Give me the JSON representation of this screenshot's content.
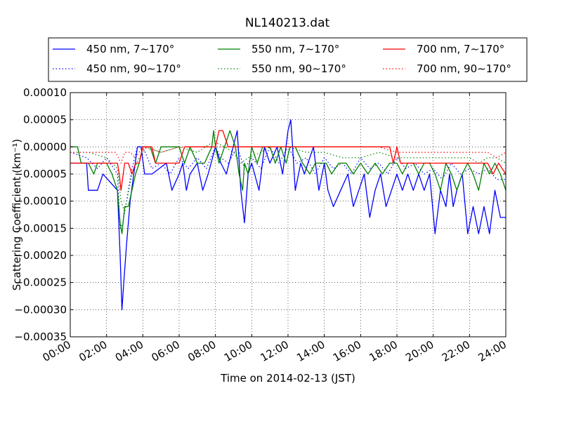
{
  "chart_data": {
    "type": "line",
    "title": "NL140213.dat",
    "xlabel": "Time on 2014-02-13 (JST)",
    "ylabel": "Scattering Coefficient (km⁻¹)",
    "xlim": [
      0,
      24
    ],
    "ylim": [
      -0.00035,
      0.0001
    ],
    "x_unit": "hours (JST)",
    "x_ticks": [
      0,
      2,
      4,
      6,
      8,
      10,
      12,
      14,
      16,
      18,
      20,
      22,
      24
    ],
    "x_tick_labels": [
      "00:00",
      "02:00",
      "04:00",
      "06:00",
      "08:00",
      "10:00",
      "12:00",
      "14:00",
      "16:00",
      "18:00",
      "20:00",
      "22:00",
      "24:00"
    ],
    "y_ticks": [
      -0.00035,
      -0.0003,
      -0.00025,
      -0.0002,
      -0.00015,
      -0.0001,
      -5e-05,
      0,
      5e-05,
      0.0001
    ],
    "y_tick_labels": [
      "−0.00035",
      "−0.00030",
      "−0.00025",
      "−0.00020",
      "−0.00015",
      "−0.00010",
      "−0.00005",
      "0.00000",
      "0.00005",
      "0.00010"
    ],
    "grid": true,
    "legend_placement": "top, above plot, 3 columns",
    "series": [
      {
        "name": "450 nm, 7∼170°",
        "color": "#0000ff",
        "style": "solid",
        "x": [
          0,
          0.9,
          1,
          1.5,
          1.8,
          2.6,
          2.75,
          2.85,
          2.95,
          3.1,
          3.3,
          3.5,
          3.7,
          3.9,
          4.1,
          4.5,
          5.3,
          5.6,
          6,
          6.2,
          6.4,
          6.6,
          7,
          7.3,
          7.6,
          8,
          8.3,
          8.6,
          9.2,
          9.4,
          9.6,
          9.8,
          10,
          10.4,
          10.7,
          11,
          11.4,
          11.7,
          12,
          12.15,
          12.25,
          12.4,
          12.7,
          12.9,
          13.1,
          13.4,
          13.7,
          14,
          14.2,
          14.5,
          14.9,
          15.3,
          15.6,
          15.9,
          16.2,
          16.5,
          16.8,
          17.1,
          17.4,
          17.7,
          18,
          18.3,
          18.6,
          18.9,
          19.2,
          19.5,
          19.8,
          20.1,
          20.4,
          20.7,
          20.9,
          21.1,
          21.3,
          21.6,
          21.9,
          22.2,
          22.5,
          22.8,
          23.1,
          23.4,
          23.7,
          24
        ],
        "y": [
          -3e-05,
          -3e-05,
          -8e-05,
          -8e-05,
          -5e-05,
          -8e-05,
          -0.0002,
          -0.0003,
          -0.00025,
          -0.00018,
          -0.0001,
          -5e-05,
          0,
          0,
          -5e-05,
          -5e-05,
          -3e-05,
          -8e-05,
          -5e-05,
          -3e-05,
          -8e-05,
          -5e-05,
          -3e-05,
          -8e-05,
          -5e-05,
          0,
          -3e-05,
          -5e-05,
          3e-05,
          -8e-05,
          -0.00014,
          -5e-05,
          -3e-05,
          -8e-05,
          0,
          -3e-05,
          0,
          -5e-05,
          3e-05,
          5e-05,
          0,
          -8e-05,
          -3e-05,
          -5e-05,
          -3e-05,
          0,
          -8e-05,
          -3e-05,
          -8e-05,
          -0.00011,
          -8e-05,
          -5e-05,
          -0.00011,
          -8e-05,
          -5e-05,
          -0.00013,
          -8e-05,
          -5e-05,
          -0.00011,
          -8e-05,
          -5e-05,
          -8e-05,
          -5e-05,
          -8e-05,
          -5e-05,
          -8e-05,
          -5e-05,
          -0.00016,
          -8e-05,
          -0.00011,
          -5e-05,
          -0.00011,
          -8e-05,
          -5e-05,
          -0.00016,
          -0.00011,
          -0.00016,
          -0.00011,
          -0.00016,
          -8e-05,
          -0.00013,
          -0.00013
        ]
      },
      {
        "name": "450 nm, 90∼170°",
        "color": "#0000ff",
        "style": "dotted",
        "x": [
          0,
          0.9,
          1.5,
          2,
          2.6,
          2.75,
          2.9,
          3.1,
          3.4,
          3.7,
          4,
          4.5,
          5,
          5.5,
          6,
          6.5,
          7,
          7.5,
          8,
          8.3,
          8.7,
          9.2,
          9.6,
          10,
          10.5,
          11,
          11.5,
          12,
          12.5,
          13,
          13.5,
          14,
          14.5,
          15,
          15.5,
          16,
          16.5,
          17,
          17.5,
          18,
          18.5,
          19,
          19.5,
          20,
          20.5,
          21,
          21.5,
          22,
          22.5,
          23,
          23.5,
          24
        ],
        "y": [
          -1e-05,
          -2e-05,
          -4e-05,
          -2e-05,
          -5e-05,
          -0.00015,
          -0.00014,
          -0.0001,
          -4e-05,
          0,
          0,
          -4e-05,
          -3e-05,
          -5e-05,
          -2e-05,
          -4e-05,
          -2e-05,
          -4e-05,
          0,
          -2e-05,
          -3e-05,
          0,
          -4e-05,
          -2e-05,
          -4e-05,
          0,
          -3e-05,
          0,
          -3e-05,
          -2e-05,
          -5e-05,
          -2e-05,
          -4e-05,
          -3e-05,
          -5e-05,
          -2e-05,
          -4e-05,
          -3e-05,
          -5e-05,
          -2e-05,
          -4e-05,
          -3e-05,
          -5e-05,
          -4e-05,
          -6e-05,
          -3e-05,
          -5e-05,
          -4e-05,
          -5e-05,
          -4e-05,
          -6e-05,
          -6e-05
        ]
      },
      {
        "name": "550 nm, 7∼170°",
        "color": "#008000",
        "style": "solid",
        "x": [
          0,
          0.4,
          0.6,
          1,
          1.3,
          1.5,
          1.7,
          2,
          2.3,
          2.6,
          2.75,
          2.85,
          3,
          3.2,
          3.4,
          3.6,
          3.8,
          4,
          4.4,
          4.7,
          5,
          5.3,
          6,
          6.3,
          6.6,
          7,
          7.2,
          7.4,
          7.8,
          7.9,
          8,
          8.2,
          8.5,
          8.8,
          9.1,
          9.3,
          9.5,
          9.6,
          9.8,
          10,
          10.3,
          10.6,
          11,
          11.3,
          11.6,
          11.9,
          12.1,
          12.4,
          12.8,
          13.2,
          13.5,
          13.8,
          14.1,
          14.4,
          14.8,
          15.2,
          15.6,
          16,
          16.4,
          16.8,
          17.2,
          17.6,
          18,
          18.3,
          18.6,
          18.9,
          19.2,
          19.5,
          19.8,
          20.1,
          20.4,
          20.7,
          21,
          21.3,
          21.6,
          21.9,
          22.2,
          22.5,
          22.8,
          23.1,
          23.4,
          23.7,
          24
        ],
        "y": [
          0,
          0,
          -3e-05,
          -3e-05,
          -5e-05,
          -3e-05,
          -3e-05,
          -3e-05,
          -5e-05,
          -8e-05,
          -0.00014,
          -0.00016,
          -0.00011,
          -0.00011,
          -8e-05,
          -5e-05,
          -3e-05,
          0,
          0,
          -3e-05,
          0,
          0,
          0,
          -3e-05,
          0,
          -3e-05,
          -3e-05,
          -3e-05,
          0,
          3e-05,
          0,
          -3e-05,
          0,
          3e-05,
          0,
          -5e-05,
          -8e-05,
          -3e-05,
          -5e-05,
          0,
          -3e-05,
          0,
          0,
          -3e-05,
          0,
          -3e-05,
          0,
          0,
          -3e-05,
          -5e-05,
          -3e-05,
          -3e-05,
          -3e-05,
          -5e-05,
          -3e-05,
          -3e-05,
          -5e-05,
          -3e-05,
          -5e-05,
          -3e-05,
          -5e-05,
          -3e-05,
          -3e-05,
          -5e-05,
          -3e-05,
          -3e-05,
          -5e-05,
          -3e-05,
          -3e-05,
          -5e-05,
          -8e-05,
          -3e-05,
          -5e-05,
          -8e-05,
          -5e-05,
          -3e-05,
          -5e-05,
          -8e-05,
          -3e-05,
          -5e-05,
          -3e-05,
          -5e-05,
          -8e-05
        ]
      },
      {
        "name": "550 nm, 90∼170°",
        "color": "#008000",
        "style": "dotted",
        "x": [
          0,
          1,
          2,
          2.6,
          2.8,
          3,
          3.4,
          3.8,
          4.2,
          5,
          6,
          7,
          7.9,
          8.5,
          9,
          9.4,
          9.8,
          10.5,
          11,
          12,
          13,
          14,
          15,
          16,
          17,
          18,
          19,
          20,
          21,
          22,
          22.5,
          23,
          23.5,
          24
        ],
        "y": [
          -1e-05,
          -1e-05,
          -2e-05,
          -4e-05,
          -0.0001,
          -0.00012,
          -5e-05,
          -2e-05,
          0,
          -1e-05,
          0,
          -1e-05,
          1e-05,
          0,
          -1e-05,
          -3e-05,
          -2e-05,
          -1e-05,
          0,
          0,
          -1e-05,
          -1e-05,
          -2e-05,
          -2e-05,
          -1e-05,
          -2e-05,
          -2e-05,
          -2e-05,
          -2e-05,
          -2e-05,
          -3e-05,
          -2e-05,
          -2e-05,
          -3e-05
        ]
      },
      {
        "name": "700 nm, 7∼170°",
        "color": "#ff0000",
        "style": "solid",
        "x": [
          0,
          0.5,
          1,
          2,
          2.6,
          2.7,
          2.8,
          3,
          3.2,
          3.4,
          3.6,
          3.8,
          4,
          4.5,
          4.7,
          4.9,
          5.1,
          5.5,
          6,
          6.3,
          6.6,
          7,
          8,
          8.2,
          8.4,
          8.7,
          9,
          9.5,
          10,
          11,
          12,
          13,
          14,
          15,
          16,
          17,
          17.6,
          17.8,
          18,
          18.2,
          18.5,
          19,
          19.5,
          20,
          20.5,
          21,
          21.5,
          22,
          22.5,
          23,
          23.3,
          23.6,
          24
        ],
        "y": [
          -3e-05,
          -3e-05,
          -3e-05,
          -3e-05,
          -3e-05,
          -5e-05,
          -8e-05,
          -3e-05,
          -3e-05,
          -5e-05,
          -3e-05,
          -3e-05,
          0,
          0,
          -3e-05,
          -3e-05,
          -3e-05,
          -3e-05,
          -3e-05,
          0,
          0,
          0,
          0,
          3e-05,
          3e-05,
          0,
          0,
          0,
          0,
          0,
          0,
          0,
          0,
          0,
          0,
          0,
          0,
          -3e-05,
          0,
          -3e-05,
          -3e-05,
          -3e-05,
          -3e-05,
          -3e-05,
          -3e-05,
          -3e-05,
          -3e-05,
          -3e-05,
          -3e-05,
          -3e-05,
          -5e-05,
          -3e-05,
          -5e-05
        ]
      },
      {
        "name": "700 nm, 90∼170°",
        "color": "#ff0000",
        "style": "dotted",
        "x": [
          0,
          2,
          2.5,
          2.8,
          3,
          3.3,
          3.6,
          4,
          5,
          6,
          7,
          8,
          9,
          10,
          11,
          12,
          13,
          14,
          15,
          16,
          17,
          18,
          19,
          20,
          21,
          22,
          23,
          23.5,
          24
        ],
        "y": [
          -1e-05,
          -1e-05,
          -1e-05,
          -3e-05,
          -1e-05,
          -1e-05,
          -2e-05,
          0,
          -1e-05,
          0,
          0,
          0,
          0,
          0,
          0,
          0,
          0,
          0,
          0,
          0,
          0,
          -1e-05,
          -1e-05,
          -1e-05,
          -1e-05,
          -1e-05,
          -1e-05,
          -2e-05,
          -1e-05
        ]
      }
    ]
  }
}
